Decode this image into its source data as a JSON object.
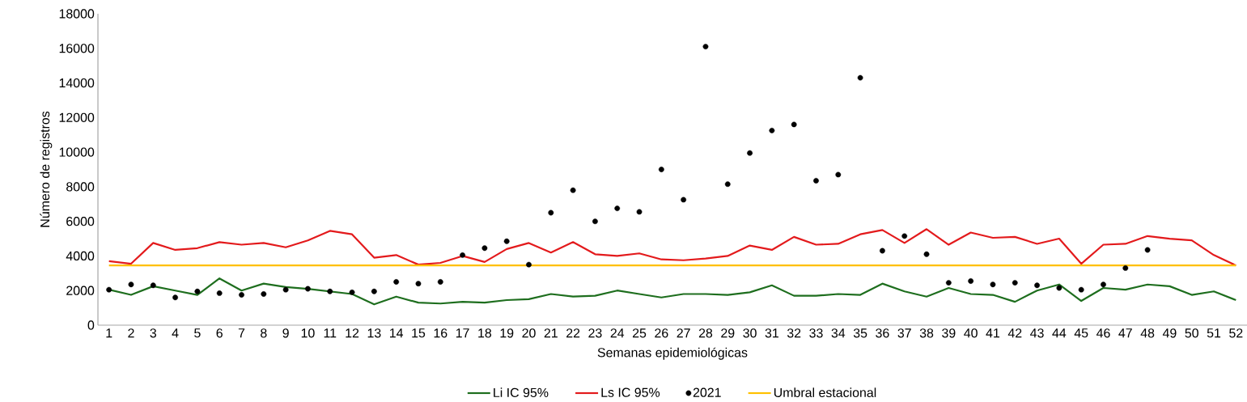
{
  "chart_data": {
    "type": "line",
    "xlabel": "Semanas epidemiológicas",
    "ylabel": "Número de registros",
    "categories": [
      "1",
      "2",
      "3",
      "4",
      "5",
      "6",
      "7",
      "8",
      "9",
      "10",
      "11",
      "12",
      "13",
      "14",
      "15",
      "16",
      "17",
      "18",
      "19",
      "20",
      "21",
      "22",
      "23",
      "24",
      "25",
      "26",
      "27",
      "28",
      "29",
      "30",
      "31",
      "32",
      "33",
      "34",
      "35",
      "36",
      "37",
      "38",
      "39",
      "40",
      "41",
      "42",
      "43",
      "44",
      "45",
      "46",
      "47",
      "48",
      "49",
      "50",
      "51",
      "52"
    ],
    "ylim": [
      0,
      18000
    ],
    "yticks": [
      0,
      2000,
      4000,
      6000,
      8000,
      10000,
      12000,
      14000,
      16000,
      18000
    ],
    "grid": false,
    "legend": "bottom",
    "series": [
      {
        "name": "Li IC 95%",
        "color": "#1e6e1e",
        "values": [
          2050,
          1750,
          2250,
          2000,
          1750,
          2700,
          2000,
          2400,
          2200,
          2100,
          1950,
          1800,
          1200,
          1650,
          1300,
          1250,
          1350,
          1300,
          1450,
          1500,
          1800,
          1650,
          1700,
          2000,
          1800,
          1600,
          1800,
          1800,
          1750,
          1900,
          2300,
          1700,
          1700,
          1800,
          1750,
          2400,
          1950,
          1650,
          2150,
          1800,
          1750,
          1350,
          2000,
          2350,
          1400,
          2150,
          2050,
          2350,
          2250,
          1750,
          1950,
          1450
        ]
      },
      {
        "name": "Ls IC 95%",
        "color": "#e31a1c",
        "values": [
          3700,
          3550,
          4750,
          4350,
          4450,
          4800,
          4650,
          4750,
          4500,
          4900,
          5450,
          5250,
          3900,
          4050,
          3500,
          3600,
          4000,
          3650,
          4400,
          4750,
          4200,
          4800,
          4100,
          4000,
          4150,
          3800,
          3750,
          3850,
          4000,
          4600,
          4350,
          5100,
          4650,
          4700,
          5250,
          5500,
          4750,
          5550,
          4650,
          5350,
          5050,
          5100,
          4700,
          5000,
          3550,
          4650,
          4700,
          5150,
          5000,
          4900,
          4050,
          3450
        ]
      },
      {
        "name": "2021",
        "type": "scatter",
        "marker": "circle",
        "color": "#000000",
        "values": [
          2050,
          2350,
          2300,
          1600,
          1950,
          1850,
          1750,
          1800,
          2050,
          2100,
          1950,
          1900,
          1950,
          2500,
          2400,
          2500,
          4050,
          4450,
          4850,
          3500,
          6500,
          7800,
          6000,
          6750,
          6550,
          9000,
          7250,
          16100,
          8150,
          9950,
          11250,
          11600,
          8350,
          8700,
          14300,
          4300,
          5150,
          4100,
          2450,
          2550,
          2350,
          2450,
          2300,
          2150,
          2050,
          2350,
          3300,
          4350,
          null,
          null,
          null,
          null
        ]
      },
      {
        "name": "Umbral estacional",
        "color": "#ffc000",
        "values": [
          3450,
          3450,
          3450,
          3450,
          3450,
          3450,
          3450,
          3450,
          3450,
          3450,
          3450,
          3450,
          3450,
          3450,
          3450,
          3450,
          3450,
          3450,
          3450,
          3450,
          3450,
          3450,
          3450,
          3450,
          3450,
          3450,
          3450,
          3450,
          3450,
          3450,
          3450,
          3450,
          3450,
          3450,
          3450,
          3450,
          3450,
          3450,
          3450,
          3450,
          3450,
          3450,
          3450,
          3450,
          3450,
          3450,
          3450,
          3450,
          3450,
          3450,
          3450,
          3450
        ]
      }
    ]
  }
}
